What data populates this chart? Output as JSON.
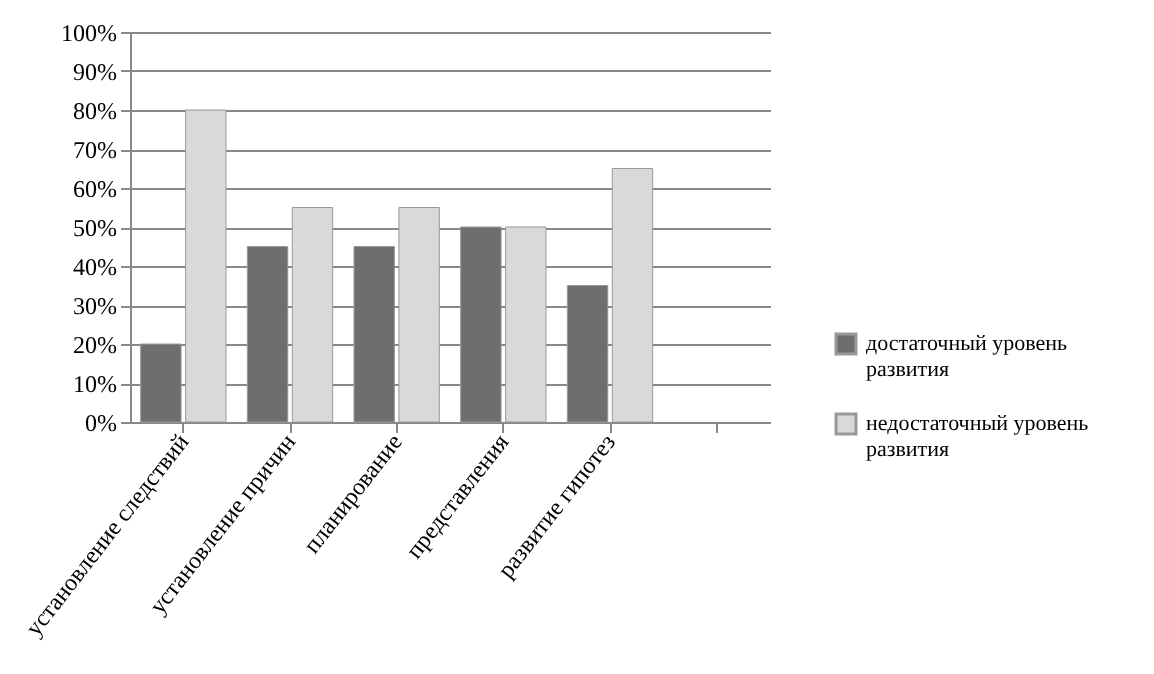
{
  "chart_data": {
    "type": "bar",
    "categories": [
      "установление следствий",
      "установление причин",
      "планирование",
      "представления",
      "развитие гипотез",
      null
    ],
    "series": [
      {
        "name": "достаточный уровень развития",
        "color": "#6e6e6e",
        "values": [
          20,
          45,
          45,
          50,
          35,
          null
        ]
      },
      {
        "name": "недостаточный уровень развития",
        "color": "#d9d9d9",
        "values": [
          80,
          55,
          55,
          50,
          65,
          null
        ]
      }
    ],
    "ylim": [
      0,
      100
    ],
    "yticks": [
      {
        "value": 0,
        "label": "0%"
      },
      {
        "value": 10,
        "label": "10%"
      },
      {
        "value": 20,
        "label": "20%"
      },
      {
        "value": 30,
        "label": "30%"
      },
      {
        "value": 40,
        "label": "40%"
      },
      {
        "value": 50,
        "label": "50%"
      },
      {
        "value": 60,
        "label": "60%"
      },
      {
        "value": 70,
        "label": "70%"
      },
      {
        "value": 80,
        "label": "80%"
      },
      {
        "value": 90,
        "label": "90%"
      },
      {
        "value": 100,
        "label": "100%"
      }
    ],
    "grid": "y",
    "legend": "bottom right"
  }
}
